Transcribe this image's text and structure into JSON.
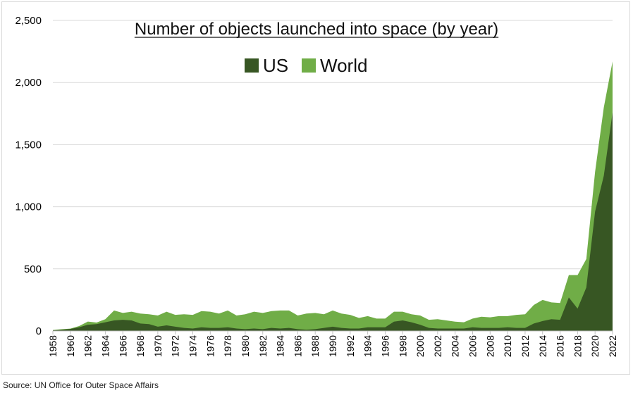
{
  "chart_data": {
    "type": "area",
    "title": "Number of objects launched into space (by year)",
    "ylim": [
      0,
      2500
    ],
    "yticks": [
      "0",
      "500",
      "1,000",
      "1,500",
      "2,000",
      "2,500"
    ],
    "grid": "horizontal",
    "legend_position": "top-center",
    "x": [
      1958,
      1959,
      1960,
      1961,
      1962,
      1963,
      1964,
      1965,
      1966,
      1967,
      1968,
      1969,
      1970,
      1971,
      1972,
      1973,
      1974,
      1975,
      1976,
      1977,
      1978,
      1979,
      1980,
      1981,
      1982,
      1983,
      1984,
      1985,
      1986,
      1987,
      1988,
      1989,
      1990,
      1991,
      1992,
      1993,
      1994,
      1995,
      1996,
      1997,
      1998,
      1999,
      2000,
      2001,
      2002,
      2003,
      2004,
      2005,
      2006,
      2007,
      2008,
      2009,
      2010,
      2011,
      2012,
      2013,
      2014,
      2015,
      2016,
      2017,
      2018,
      2019,
      2020,
      2021,
      2022
    ],
    "xticks": [
      "1958",
      "1960",
      "1962",
      "1964",
      "1966",
      "1968",
      "1970",
      "1972",
      "1974",
      "1976",
      "1978",
      "1980",
      "1982",
      "1984",
      "1986",
      "1988",
      "1990",
      "1992",
      "1994",
      "1996",
      "1998",
      "2000",
      "2002",
      "2004",
      "2006",
      "2008",
      "2010",
      "2012",
      "2014",
      "2016",
      "2018",
      "2020",
      "2022"
    ],
    "series": [
      {
        "name": "World",
        "color": "#70ad47",
        "values": [
          8,
          14,
          19,
          40,
          76,
          68,
          95,
          165,
          145,
          155,
          140,
          135,
          125,
          155,
          130,
          135,
          130,
          160,
          155,
          140,
          165,
          125,
          135,
          155,
          145,
          160,
          165,
          165,
          125,
          140,
          145,
          135,
          165,
          140,
          130,
          105,
          120,
          100,
          100,
          155,
          155,
          135,
          125,
          90,
          95,
          85,
          75,
          70,
          100,
          115,
          110,
          120,
          120,
          130,
          135,
          210,
          250,
          230,
          225,
          450,
          450,
          580,
          1280,
          1800,
          2170
        ]
      },
      {
        "name": "US",
        "color": "#375623",
        "values": [
          5,
          10,
          16,
          30,
          50,
          55,
          70,
          85,
          90,
          85,
          60,
          55,
          35,
          45,
          35,
          25,
          20,
          30,
          25,
          25,
          30,
          20,
          15,
          20,
          15,
          25,
          20,
          25,
          15,
          10,
          15,
          25,
          35,
          25,
          20,
          20,
          30,
          30,
          30,
          75,
          85,
          70,
          50,
          25,
          20,
          20,
          20,
          20,
          30,
          25,
          25,
          25,
          30,
          25,
          25,
          60,
          80,
          95,
          90,
          270,
          180,
          350,
          960,
          1250,
          1760
        ]
      }
    ]
  },
  "source_note": "Source: UN Office for Outer Space Affairs"
}
